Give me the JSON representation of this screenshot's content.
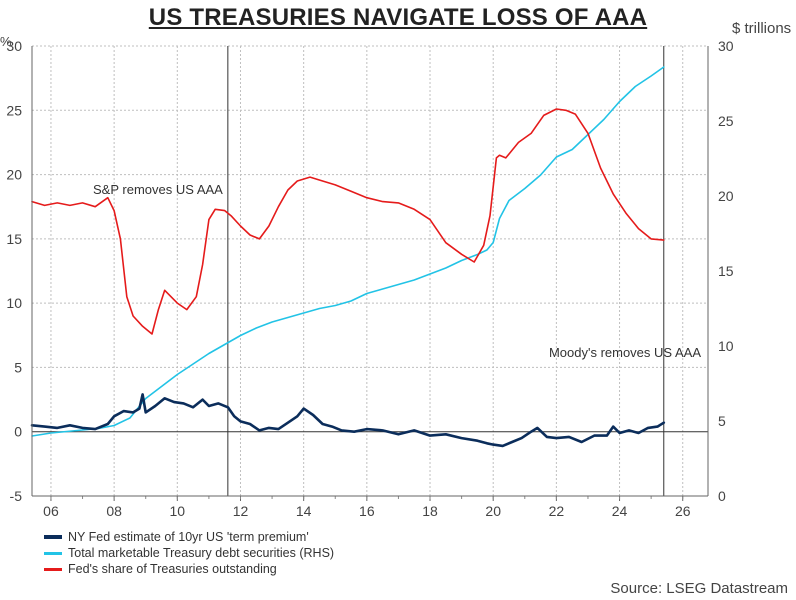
{
  "title": "US TREASURIES NAVIGATE LOSS OF AAA",
  "units": {
    "left": "%",
    "right": "$ trillions"
  },
  "source": "Source: LSEG Datastream",
  "annotations": {
    "sp": "S&P removes US AAA",
    "moodys": "Moody's removes US AAA"
  },
  "colors": {
    "term_premium": "#0b2d5b",
    "debt": "#22c3e6",
    "fed_share": "#e51b1b",
    "grid": "#bfbfbf"
  },
  "chart_data": {
    "type": "line",
    "title": "US TREASURIES NAVIGATE LOSS OF AAA",
    "xlabel": "",
    "ylabel": "%",
    "ylabel_right": "$ trillions",
    "xlim": [
      2005.4,
      2026.8
    ],
    "ylim_left": [
      -5,
      30
    ],
    "ylim_right": [
      0,
      30
    ],
    "x_ticks": [
      2006,
      2008,
      2010,
      2012,
      2014,
      2016,
      2018,
      2020,
      2022,
      2024,
      2026
    ],
    "x_tick_labels": [
      "06",
      "08",
      "10",
      "12",
      "14",
      "16",
      "18",
      "20",
      "22",
      "24",
      "26"
    ],
    "y_ticks_left": [
      -5,
      0,
      5,
      10,
      15,
      20,
      25,
      30
    ],
    "y_ticks_right": [
      0,
      5,
      10,
      15,
      20,
      25,
      30
    ],
    "events": [
      {
        "x": 2011.6,
        "label_key": "sp"
      },
      {
        "x": 2025.4,
        "label_key": "moodys"
      }
    ],
    "series": [
      {
        "name": "NY Fed estimate of 10yr US 'term premium'",
        "axis": "left",
        "color_key": "term_premium",
        "x": [
          2005.4,
          2005.8,
          2006.2,
          2006.6,
          2007.0,
          2007.4,
          2007.8,
          2008.0,
          2008.3,
          2008.6,
          2008.8,
          2008.9,
          2009.0,
          2009.3,
          2009.6,
          2009.9,
          2010.2,
          2010.5,
          2010.8,
          2011.0,
          2011.3,
          2011.6,
          2011.8,
          2012.0,
          2012.3,
          2012.6,
          2012.9,
          2013.2,
          2013.5,
          2013.8,
          2014.0,
          2014.3,
          2014.6,
          2014.9,
          2015.2,
          2015.6,
          2016.0,
          2016.5,
          2017.0,
          2017.5,
          2018.0,
          2018.5,
          2019.0,
          2019.5,
          2019.8,
          2020.0,
          2020.3,
          2020.6,
          2020.9,
          2021.2,
          2021.4,
          2021.7,
          2022.0,
          2022.4,
          2022.8,
          2023.2,
          2023.6,
          2023.8,
          2024.0,
          2024.3,
          2024.6,
          2024.9,
          2025.2,
          2025.4
        ],
        "values": [
          0.5,
          0.4,
          0.3,
          0.5,
          0.3,
          0.2,
          0.6,
          1.2,
          1.6,
          1.5,
          1.8,
          2.9,
          1.5,
          2.0,
          2.6,
          2.3,
          2.2,
          1.9,
          2.5,
          2.0,
          2.2,
          1.9,
          1.2,
          0.8,
          0.6,
          0.1,
          0.3,
          0.2,
          0.7,
          1.2,
          1.8,
          1.3,
          0.6,
          0.4,
          0.1,
          0.0,
          0.2,
          0.1,
          -0.2,
          0.1,
          -0.3,
          -0.2,
          -0.5,
          -0.7,
          -0.9,
          -1.0,
          -1.1,
          -0.8,
          -0.5,
          0.0,
          0.3,
          -0.4,
          -0.5,
          -0.4,
          -0.8,
          -0.3,
          -0.3,
          0.4,
          -0.1,
          0.1,
          -0.1,
          0.3,
          0.4,
          0.7
        ]
      },
      {
        "name": "Total marketable Treasury debt securities (RHS)",
        "axis": "right",
        "color_key": "debt",
        "x": [
          2005.4,
          2006.0,
          2006.5,
          2007.0,
          2007.5,
          2008.0,
          2008.5,
          2009.0,
          2009.5,
          2010.0,
          2010.5,
          2011.0,
          2011.5,
          2012.0,
          2012.5,
          2013.0,
          2013.5,
          2014.0,
          2014.5,
          2015.0,
          2015.5,
          2016.0,
          2016.5,
          2017.0,
          2017.5,
          2018.0,
          2018.5,
          2019.0,
          2019.5,
          2019.8,
          2020.0,
          2020.2,
          2020.5,
          2021.0,
          2021.5,
          2022.0,
          2022.5,
          2023.0,
          2023.5,
          2024.0,
          2024.5,
          2025.0,
          2025.4
        ],
        "values": [
          4.0,
          4.2,
          4.3,
          4.4,
          4.5,
          4.7,
          5.2,
          6.5,
          7.3,
          8.1,
          8.8,
          9.5,
          10.1,
          10.7,
          11.2,
          11.6,
          11.9,
          12.2,
          12.5,
          12.7,
          13.0,
          13.5,
          13.8,
          14.1,
          14.4,
          14.8,
          15.2,
          15.7,
          16.1,
          16.4,
          16.9,
          18.5,
          19.7,
          20.5,
          21.4,
          22.6,
          23.1,
          24.1,
          25.1,
          26.3,
          27.3,
          28.0,
          28.6
        ]
      },
      {
        "name": "Fed's share of Treasuries outstanding",
        "axis": "left",
        "color_key": "fed_share",
        "x": [
          2005.4,
          2005.8,
          2006.2,
          2006.6,
          2007.0,
          2007.4,
          2007.8,
          2008.0,
          2008.2,
          2008.4,
          2008.6,
          2008.9,
          2009.2,
          2009.4,
          2009.6,
          2009.8,
          2010.0,
          2010.3,
          2010.6,
          2010.8,
          2011.0,
          2011.2,
          2011.5,
          2011.7,
          2012.0,
          2012.3,
          2012.6,
          2012.9,
          2013.2,
          2013.5,
          2013.8,
          2014.2,
          2014.6,
          2015.0,
          2015.5,
          2016.0,
          2016.5,
          2017.0,
          2017.5,
          2018.0,
          2018.5,
          2019.0,
          2019.4,
          2019.7,
          2019.9,
          2020.1,
          2020.2,
          2020.4,
          2020.8,
          2021.2,
          2021.6,
          2022.0,
          2022.3,
          2022.6,
          2023.0,
          2023.4,
          2023.8,
          2024.2,
          2024.6,
          2025.0,
          2025.4
        ],
        "values": [
          17.9,
          17.6,
          17.8,
          17.6,
          17.8,
          17.5,
          18.2,
          17.2,
          15.0,
          10.5,
          9.0,
          8.2,
          7.6,
          9.5,
          11.0,
          10.5,
          10.0,
          9.5,
          10.5,
          13.0,
          16.5,
          17.3,
          17.2,
          16.8,
          16.0,
          15.3,
          15.0,
          16.0,
          17.5,
          18.8,
          19.5,
          19.8,
          19.5,
          19.2,
          18.7,
          18.2,
          17.9,
          17.8,
          17.3,
          16.5,
          14.7,
          13.8,
          13.2,
          14.5,
          16.8,
          21.3,
          21.5,
          21.3,
          22.5,
          23.2,
          24.6,
          25.1,
          25.0,
          24.7,
          23.2,
          20.5,
          18.5,
          17.0,
          15.8,
          15.0,
          14.9
        ]
      }
    ]
  }
}
